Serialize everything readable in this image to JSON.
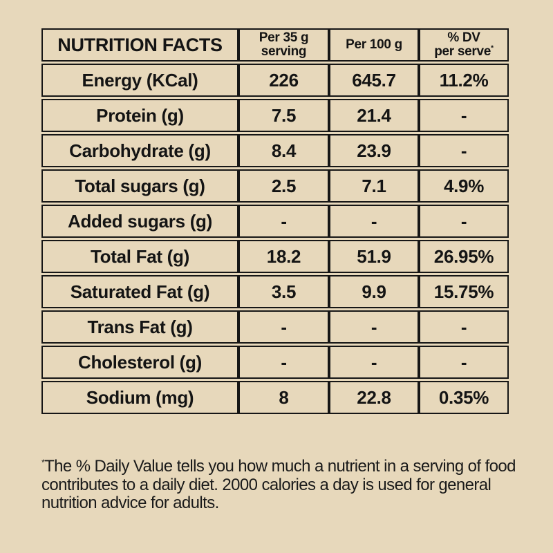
{
  "page": {
    "background_color": "#e7d8bb",
    "text_color": "#141414",
    "border_color": "#161616"
  },
  "table": {
    "header": {
      "title": "NUTRITION FACTS",
      "per_serving_line1": "Per 35 g",
      "per_serving_line2": "serving",
      "per_100g": "Per 100 g",
      "dv_line1": "% DV",
      "dv_line2": "per serve",
      "dv_asterisk": "*"
    },
    "rows": [
      {
        "label": "Energy (KCal)",
        "per_serving": "226",
        "per_100g": "645.7",
        "dv": "11.2%",
        "indent": false
      },
      {
        "label": "Protein (g)",
        "per_serving": "7.5",
        "per_100g": "21.4",
        "dv": "-",
        "indent": false
      },
      {
        "label": "Carbohydrate (g)",
        "per_serving": "8.4",
        "per_100g": "23.9",
        "dv": "-",
        "indent": false
      },
      {
        "label": "Total sugars (g)",
        "per_serving": "2.5",
        "per_100g": "7.1",
        "dv": "4.9%",
        "indent": true
      },
      {
        "label": "Added sugars (g)",
        "per_serving": "-",
        "per_100g": "-",
        "dv": "-",
        "indent": true
      },
      {
        "label": "Total Fat (g)",
        "per_serving": "18.2",
        "per_100g": "51.9",
        "dv": "26.95%",
        "indent": false
      },
      {
        "label": "Saturated Fat (g)",
        "per_serving": "3.5",
        "per_100g": "9.9",
        "dv": "15.75%",
        "indent": true
      },
      {
        "label": "Trans Fat (g)",
        "per_serving": "-",
        "per_100g": "-",
        "dv": "-",
        "indent": true
      },
      {
        "label": "Cholesterol (g)",
        "per_serving": "-",
        "per_100g": "-",
        "dv": "-",
        "indent": false
      },
      {
        "label": "Sodium (mg)",
        "per_serving": "8",
        "per_100g": "22.8",
        "dv": "0.35%",
        "indent": false
      }
    ]
  },
  "footnote": {
    "marker": "*",
    "text": "The % Daily Value tells you how much a nutrient in a serving of food contributes to a daily diet. 2000 calories a day is used for general nutrition advice for adults."
  }
}
